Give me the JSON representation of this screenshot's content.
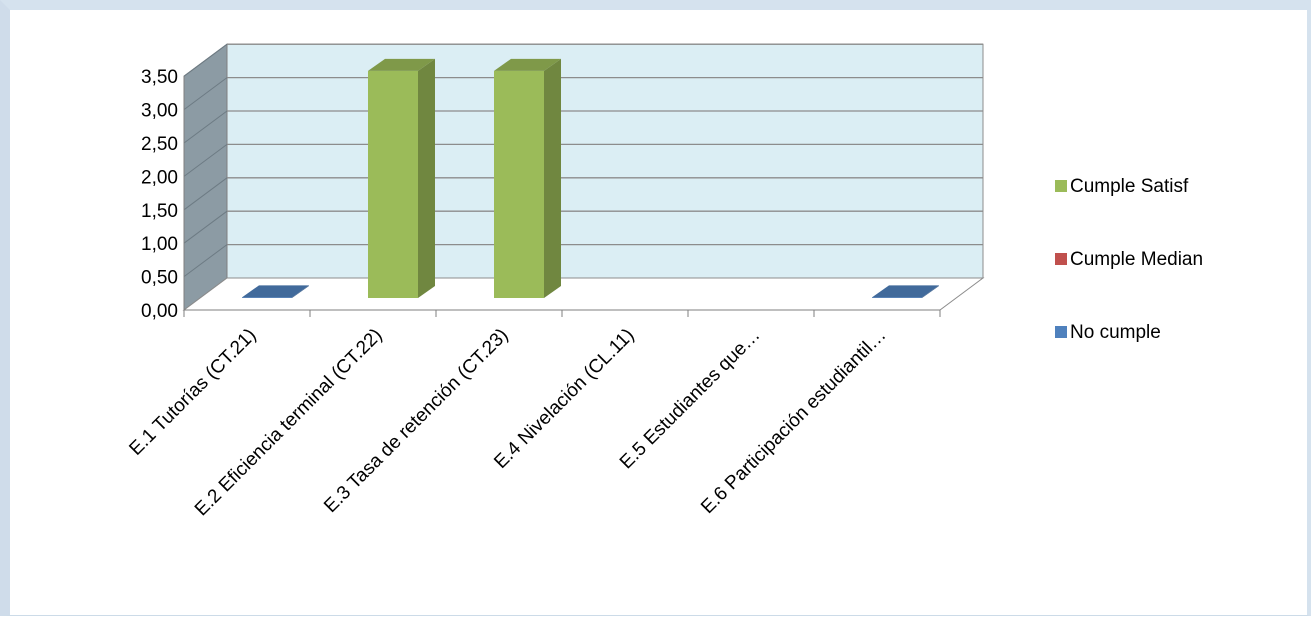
{
  "chart_data": {
    "type": "bar",
    "categories": [
      "E.1 Tutorías (CT.21)",
      "E.2 Eficiencia terminal (CT.22)",
      "E.3 Tasa de retención (CT.23)",
      "E.4 Nivelación (CL.11)",
      "E.5 Estudiantes que…",
      "E.6 Participación estudiantil…"
    ],
    "series": [
      {
        "name": "Cumple Satisf",
        "color": "#9bbb59",
        "values": [
          0,
          3.4,
          3.4,
          0,
          0,
          0
        ]
      },
      {
        "name": "Cumple Median",
        "color": "#c0504d",
        "values": [
          0,
          0,
          0,
          0,
          0,
          0
        ]
      },
      {
        "name": "No cumple",
        "color": "#4f81bd",
        "values": [
          0.01,
          0,
          0,
          0,
          0,
          0.01
        ]
      }
    ],
    "y_ticks": [
      "0,00",
      "0,50",
      "1,00",
      "1,50",
      "2,00",
      "2,50",
      "3,00",
      "3,50"
    ],
    "ylim": [
      0,
      3.5
    ],
    "grid": true,
    "legend_position": "right",
    "style": "3d-column"
  }
}
